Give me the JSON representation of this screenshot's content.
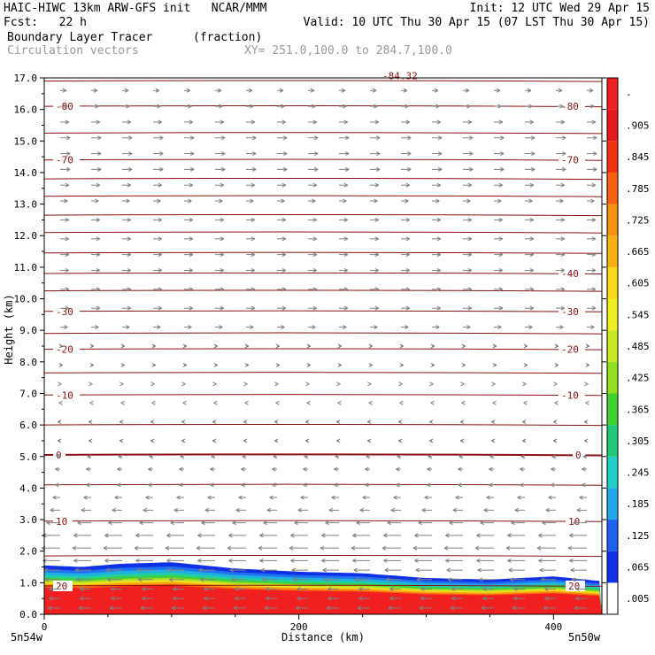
{
  "header": {
    "line1_left": "HAIC-HIWC 13km ARW-GFS init   NCAR/MMM",
    "line1_right": "Init: 12 UTC Wed 29 Apr 15",
    "line2_left": "Fcst:   22 h",
    "line2_right": "Valid: 10 UTC Thu 30 Apr 15 (07 LST Thu 30 Apr 15)",
    "line3_left": "Boundary Layer Tracer",
    "line3_unit": "(fraction)",
    "line4_left": "Circulation vectors",
    "line4_right": "XY= 251.0,100.0 to 284.7,100.0"
  },
  "chart_data": {
    "type": "heatmap",
    "title": "Boundary Layer Tracer",
    "units": "(fraction)",
    "xlabel": "Distance (km)",
    "ylabel": "Height (km)",
    "xlim": [
      0,
      438
    ],
    "ylim": [
      0,
      17
    ],
    "x_ticks": [
      0,
      200,
      400
    ],
    "y_ticks": [
      "0.0",
      "1.0",
      "2.0",
      "3.0",
      "4.0",
      "5.0",
      "6.0",
      "7.0",
      "8.0",
      "9.0",
      "10.0",
      "11.0",
      "12.0",
      "13.0",
      "14.0",
      "15.0",
      "16.0",
      "17.0"
    ],
    "x_endpoint_labels": [
      "5n54w",
      "5n50w"
    ],
    "colorbar": {
      "labels": [
        ".005",
        ".065",
        ".125",
        ".185",
        ".245",
        ".305",
        ".365",
        ".425",
        ".485",
        ".545",
        ".605",
        ".665",
        ".725",
        ".785",
        ".845",
        ".905",
        "-"
      ],
      "colors": [
        "#ffffff",
        "#1030e8",
        "#1e60f0",
        "#20a8e8",
        "#20d0c8",
        "#20c878",
        "#40d030",
        "#90e020",
        "#c8e820",
        "#f0f020",
        "#f8d818",
        "#f8b010",
        "#f89010",
        "#f86010",
        "#f03010",
        "#e81818",
        "#f02020"
      ]
    },
    "pbl_top_km": [
      {
        "x": 0,
        "y": 1.55
      },
      {
        "x": 30,
        "y": 1.5
      },
      {
        "x": 60,
        "y": 1.6
      },
      {
        "x": 100,
        "y": 1.65
      },
      {
        "x": 150,
        "y": 1.45
      },
      {
        "x": 200,
        "y": 1.35
      },
      {
        "x": 250,
        "y": 1.3
      },
      {
        "x": 300,
        "y": 1.15
      },
      {
        "x": 350,
        "y": 1.1
      },
      {
        "x": 400,
        "y": 1.2
      },
      {
        "x": 438,
        "y": 1.05
      }
    ],
    "isotherms": [
      {
        "label": "20",
        "height_km": 0.9,
        "left": true,
        "right": true
      },
      {
        "label": "10",
        "height_km": 2.95,
        "left": true,
        "right": true
      },
      {
        "label": "0",
        "height_km": 5.05,
        "left": true,
        "right": true
      },
      {
        "label": "-10",
        "height_km": 6.95,
        "left": true,
        "right": true
      },
      {
        "label": "-20",
        "height_km": 8.4,
        "left": true,
        "right": true
      },
      {
        "label": "-30",
        "height_km": 9.6,
        "left": true,
        "right": true
      },
      {
        "label": "-40",
        "height_km": 10.8,
        "left": false,
        "right": true
      },
      {
        "label": "-70",
        "height_km": 14.4,
        "left": true,
        "right": true
      },
      {
        "label": "-80",
        "height_km": 16.1,
        "left": true,
        "right": true
      },
      {
        "label": "-84.32",
        "height_km": 16.9,
        "left": false,
        "right": false,
        "center": true
      }
    ],
    "unlabeled_isotherm_heights_km": [
      1.85,
      4.1,
      6.0,
      7.65,
      8.9,
      10.25,
      11.45,
      12.1,
      12.65,
      13.25,
      13.8,
      15.25
    ],
    "wind_vectors_km_per_row": [
      {
        "height_km": 0.2,
        "u": -1
      },
      {
        "height_km": 0.5,
        "u": -0.9
      },
      {
        "height_km": 0.8,
        "u": -0.9
      },
      {
        "height_km": 1.1,
        "u": -1.2
      },
      {
        "height_km": 1.4,
        "u": -1.3
      },
      {
        "height_km": 1.7,
        "u": -1.4
      },
      {
        "height_km": 2.1,
        "u": -1.5
      },
      {
        "height_km": 2.5,
        "u": -1.4
      },
      {
        "height_km": 2.9,
        "u": -1.1
      },
      {
        "height_km": 3.3,
        "u": -0.8
      },
      {
        "height_km": 3.7,
        "u": -0.6
      },
      {
        "height_km": 4.1,
        "u": -0.4
      },
      {
        "height_km": 4.6,
        "u": -0.4
      },
      {
        "height_km": 5.0,
        "u": -0.3
      },
      {
        "height_km": 5.5,
        "u": -0.2
      },
      {
        "height_km": 6.1,
        "u": -0.2
      },
      {
        "height_km": 6.7,
        "u": -0.1
      },
      {
        "height_km": 7.3,
        "u": 0.1
      },
      {
        "height_km": 7.9,
        "u": 0.2
      },
      {
        "height_km": 8.5,
        "u": 0.2
      },
      {
        "height_km": 9.1,
        "u": 0.6
      },
      {
        "height_km": 9.7,
        "u": 0.7
      },
      {
        "height_km": 10.3,
        "u": 0.7
      },
      {
        "height_km": 10.9,
        "u": 0.7
      },
      {
        "height_km": 11.4,
        "u": 0.7
      },
      {
        "height_km": 11.9,
        "u": 0.7
      },
      {
        "height_km": 12.5,
        "u": 0.7
      },
      {
        "height_km": 13.1,
        "u": 0.6
      },
      {
        "height_km": 13.6,
        "u": 0.7
      },
      {
        "height_km": 14.1,
        "u": 0.8
      },
      {
        "height_km": 14.6,
        "u": 0.8
      },
      {
        "height_km": 15.1,
        "u": 0.8
      },
      {
        "height_km": 15.6,
        "u": 0.7
      },
      {
        "height_km": 16.1,
        "u": 0.6
      },
      {
        "height_km": 16.6,
        "u": 0.5
      }
    ],
    "grid": false
  }
}
